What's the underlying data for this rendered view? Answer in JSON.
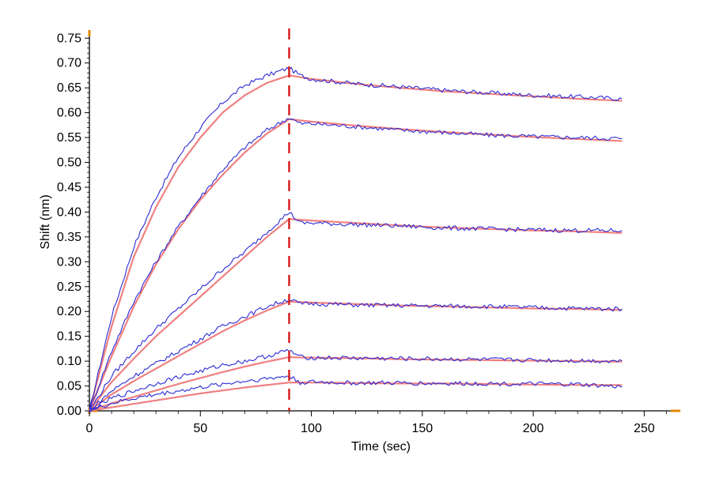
{
  "chart_data": {
    "type": "line",
    "xlabel": "Time (sec)",
    "ylabel": "Shift (nm)",
    "xlim": [
      0,
      262
    ],
    "ylim": [
      0.0,
      0.76
    ],
    "x_ticks": [
      0,
      50,
      100,
      150,
      200,
      250
    ],
    "x_tick_labels": [
      "0",
      "50",
      "100",
      "150",
      "200",
      "250"
    ],
    "y_ticks": [
      0.0,
      0.05,
      0.1,
      0.15,
      0.2,
      0.25,
      0.3,
      0.35,
      0.4,
      0.45,
      0.5,
      0.55,
      0.6,
      0.65,
      0.7,
      0.75
    ],
    "y_tick_labels": [
      "0.00",
      "0.05",
      "0.10",
      "0.15",
      "0.20",
      "0.25",
      "0.30",
      "0.35",
      "0.40",
      "0.45",
      "0.50",
      "0.55",
      "0.60",
      "0.65",
      "0.70",
      "0.75"
    ],
    "grid": false,
    "legend": "none",
    "association_end_marker_x": 90,
    "colors": {
      "measured": "#2b2bd6",
      "fit": "#f08080",
      "marker": "#d62020",
      "axis_accent": "#e08a00"
    },
    "series": [
      {
        "role": "measured",
        "curves": [
          {
            "x": [
              0,
              10,
              20,
              30,
              40,
              50,
              60,
              70,
              80,
              90,
              95,
              100,
              120,
              140,
              160,
              180,
              200,
              220,
              240
            ],
            "y": [
              0.0,
              0.19,
              0.33,
              0.43,
              0.51,
              0.57,
              0.62,
              0.655,
              0.675,
              0.69,
              0.675,
              0.668,
              0.658,
              0.652,
              0.645,
              0.64,
              0.635,
              0.632,
              0.628
            ]
          },
          {
            "x": [
              0,
              10,
              20,
              30,
              40,
              50,
              60,
              70,
              80,
              90,
              95,
              100,
              120,
              140,
              160,
              180,
              200,
              220,
              240
            ],
            "y": [
              0.0,
              0.12,
              0.22,
              0.3,
              0.37,
              0.43,
              0.485,
              0.53,
              0.565,
              0.59,
              0.578,
              0.578,
              0.572,
              0.565,
              0.56,
              0.555,
              0.552,
              0.55,
              0.548
            ]
          },
          {
            "x": [
              0,
              10,
              20,
              30,
              40,
              50,
              60,
              70,
              80,
              90,
              95,
              100,
              120,
              140,
              160,
              180,
              200,
              220,
              240
            ],
            "y": [
              0.0,
              0.07,
              0.12,
              0.165,
              0.205,
              0.245,
              0.285,
              0.32,
              0.36,
              0.4,
              0.378,
              0.378,
              0.375,
              0.372,
              0.368,
              0.366,
              0.364,
              0.363,
              0.363
            ]
          },
          {
            "x": [
              0,
              10,
              20,
              30,
              40,
              50,
              60,
              70,
              80,
              90,
              95,
              100,
              120,
              140,
              160,
              180,
              200,
              220,
              240
            ],
            "y": [
              0.0,
              0.04,
              0.07,
              0.095,
              0.12,
              0.145,
              0.17,
              0.19,
              0.21,
              0.225,
              0.215,
              0.216,
              0.213,
              0.212,
              0.211,
              0.21,
              0.208,
              0.206,
              0.205
            ]
          },
          {
            "x": [
              0,
              10,
              20,
              30,
              40,
              50,
              60,
              70,
              80,
              90,
              95,
              100,
              120,
              140,
              160,
              180,
              200,
              220,
              240
            ],
            "y": [
              0.0,
              0.025,
              0.04,
              0.055,
              0.068,
              0.08,
              0.092,
              0.1,
              0.11,
              0.122,
              0.108,
              0.107,
              0.106,
              0.105,
              0.104,
              0.103,
              0.102,
              0.101,
              0.1
            ]
          },
          {
            "x": [
              0,
              10,
              20,
              30,
              40,
              50,
              60,
              70,
              80,
              90,
              95,
              100,
              120,
              140,
              160,
              180,
              200,
              220,
              240
            ],
            "y": [
              0.0,
              0.015,
              0.025,
              0.033,
              0.04,
              0.047,
              0.054,
              0.06,
              0.065,
              0.07,
              0.057,
              0.058,
              0.056,
              0.056,
              0.055,
              0.055,
              0.054,
              0.053,
              0.048
            ]
          }
        ]
      },
      {
        "role": "fit",
        "curves": [
          {
            "x": [
              0,
              10,
              20,
              30,
              40,
              50,
              60,
              70,
              80,
              90,
              100,
              120,
              140,
              160,
              180,
              200,
              220,
              240
            ],
            "y": [
              0.0,
              0.17,
              0.31,
              0.41,
              0.49,
              0.55,
              0.6,
              0.635,
              0.66,
              0.675,
              0.668,
              0.658,
              0.65,
              0.643,
              0.638,
              0.633,
              0.628,
              0.624
            ]
          },
          {
            "x": [
              0,
              10,
              20,
              30,
              40,
              50,
              60,
              70,
              80,
              90,
              100,
              120,
              140,
              160,
              180,
              200,
              220,
              240
            ],
            "y": [
              0.0,
              0.11,
              0.21,
              0.295,
              0.365,
              0.425,
              0.475,
              0.52,
              0.558,
              0.587,
              0.582,
              0.574,
              0.567,
              0.561,
              0.556,
              0.551,
              0.547,
              0.543
            ]
          },
          {
            "x": [
              0,
              10,
              20,
              30,
              40,
              50,
              60,
              70,
              80,
              90,
              100,
              120,
              140,
              160,
              180,
              200,
              220,
              240
            ],
            "y": [
              0.0,
              0.058,
              0.105,
              0.15,
              0.19,
              0.23,
              0.27,
              0.31,
              0.35,
              0.386,
              0.383,
              0.378,
              0.373,
              0.369,
              0.366,
              0.363,
              0.361,
              0.358
            ]
          },
          {
            "x": [
              0,
              10,
              20,
              30,
              40,
              50,
              60,
              70,
              80,
              90,
              100,
              120,
              140,
              160,
              180,
              200,
              220,
              240
            ],
            "y": [
              0.0,
              0.033,
              0.06,
              0.085,
              0.11,
              0.135,
              0.16,
              0.182,
              0.202,
              0.22,
              0.218,
              0.215,
              0.212,
              0.21,
              0.208,
              0.206,
              0.205,
              0.203
            ]
          },
          {
            "x": [
              0,
              10,
              20,
              30,
              40,
              50,
              60,
              70,
              80,
              90,
              100,
              120,
              140,
              160,
              180,
              200,
              220,
              240
            ],
            "y": [
              0.0,
              0.015,
              0.028,
              0.041,
              0.054,
              0.066,
              0.078,
              0.089,
              0.099,
              0.108,
              0.107,
              0.106,
              0.104,
              0.103,
              0.102,
              0.101,
              0.1,
              0.099
            ]
          },
          {
            "x": [
              0,
              10,
              20,
              30,
              40,
              50,
              60,
              70,
              80,
              90,
              100,
              120,
              140,
              160,
              180,
              200,
              220,
              240
            ],
            "y": [
              0.0,
              0.007,
              0.014,
              0.021,
              0.028,
              0.035,
              0.041,
              0.047,
              0.052,
              0.057,
              0.057,
              0.056,
              0.055,
              0.055,
              0.054,
              0.053,
              0.052,
              0.052
            ]
          }
        ]
      }
    ]
  }
}
